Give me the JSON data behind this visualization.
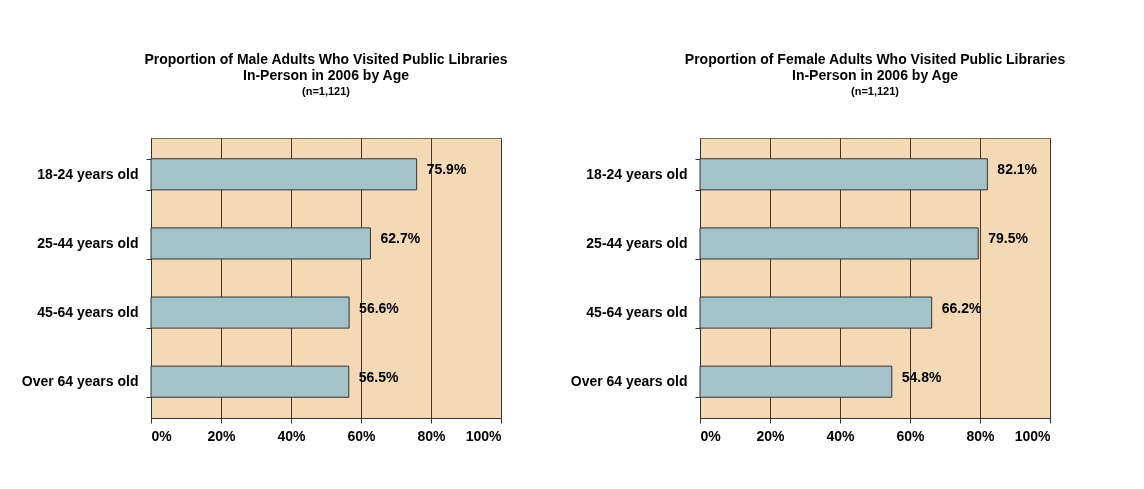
{
  "chart_data": [
    {
      "type": "bar",
      "orientation": "horizontal",
      "title": "Proportion of Male Adults Who Visited Public Libraries\nIn-Person in 2006 by Age",
      "subtitle": "(n=1,121)",
      "categories": [
        "18-24 years old",
        "25-44 years old",
        "45-64 years old",
        "Over 64 years old"
      ],
      "values": [
        75.9,
        62.7,
        56.6,
        56.5
      ],
      "color": "#a4c2c9",
      "value_labels": [
        "75.9%",
        "62.7%",
        "56.6%",
        "56.5%"
      ],
      "xlim": [
        0,
        100
      ],
      "xticks": [
        {
          "value": 0,
          "label": "0%"
        },
        {
          "value": 20,
          "label": "20%"
        },
        {
          "value": 40,
          "label": "40%"
        },
        {
          "value": 60,
          "label": "60%"
        },
        {
          "value": 80,
          "label": "80%"
        },
        {
          "value": 100,
          "label": "100%"
        }
      ],
      "grid": "x"
    },
    {
      "type": "bar",
      "orientation": "horizontal",
      "title": "Proportion of Female Adults Who Visited Public Libraries\nIn-Person in 2006 by Age",
      "subtitle": "(n=1,121)",
      "categories": [
        "18-24 years old",
        "25-44 years old",
        "45-64 years old",
        "Over 64 years old"
      ],
      "values": [
        82.1,
        79.5,
        66.2,
        54.8
      ],
      "color": "#a4c2c9",
      "value_labels": [
        "82.1%",
        "79.5%",
        "66.2%",
        "54.8%"
      ],
      "xlim": [
        0,
        100
      ],
      "xticks": [
        {
          "value": 0,
          "label": "0%"
        },
        {
          "value": 20,
          "label": "20%"
        },
        {
          "value": 40,
          "label": "40%"
        },
        {
          "value": 60,
          "label": "60%"
        },
        {
          "value": 80,
          "label": "80%"
        },
        {
          "value": 100,
          "label": "100%"
        }
      ],
      "grid": "x"
    }
  ]
}
